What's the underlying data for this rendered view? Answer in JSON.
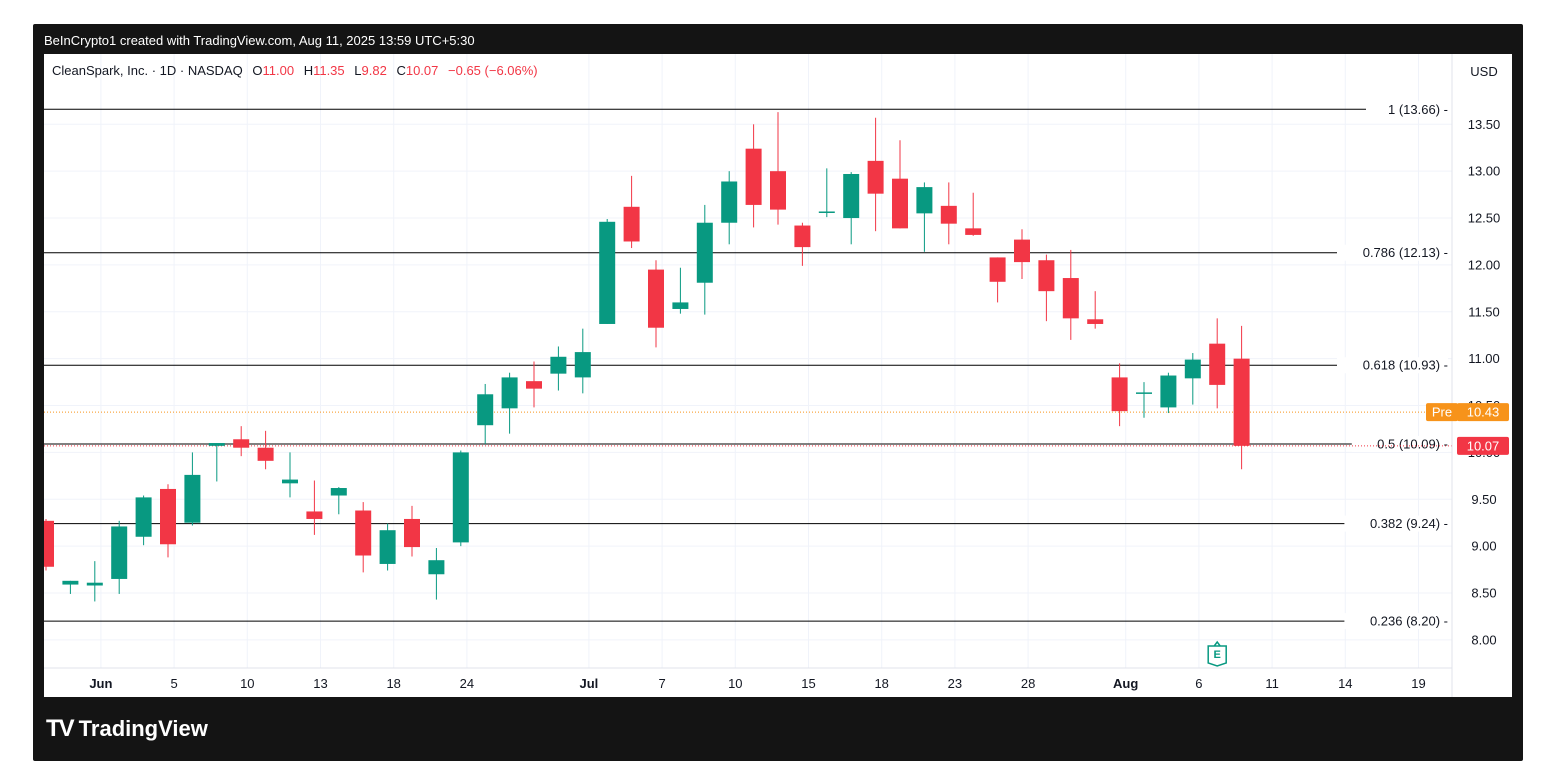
{
  "byline": "BeInCrypto1 created with TradingView.com, Aug 11, 2025 13:59 UTC+5:30",
  "brand": {
    "logo": "TV",
    "name": "TradingView"
  },
  "legend": {
    "symbol": "CleanSpark, Inc. · 1D · NASDAQ",
    "o_label": "O",
    "o_value": "11.00",
    "h_label": "H",
    "h_value": "11.35",
    "l_label": "L",
    "l_value": "9.82",
    "c_label": "C",
    "c_value": "10.07",
    "change": "−0.65 (−6.06%)"
  },
  "currency": "USD",
  "earnings_marker": "E",
  "colors": {
    "up": "#089981",
    "down": "#f23645",
    "pre": "#f7931a",
    "grid": "#f0f3fa",
    "fib": "#000000"
  },
  "chart_data": {
    "type": "candlestick",
    "ylim": [
      7.7,
      14.25
    ],
    "y_ticks": [
      "8.00",
      "8.50",
      "9.00",
      "9.50",
      "10.00",
      "10.50",
      "11.00",
      "11.50",
      "12.00",
      "12.50",
      "13.00",
      "13.50"
    ],
    "x_ticks": [
      {
        "label": "Jun",
        "i": 2.25,
        "bold": true
      },
      {
        "label": "5",
        "i": 5.25
      },
      {
        "label": "10",
        "i": 8.25
      },
      {
        "label": "13",
        "i": 11.25
      },
      {
        "label": "18",
        "i": 14.25
      },
      {
        "label": "24",
        "i": 17.25
      },
      {
        "label": "Jul",
        "i": 22.25,
        "bold": true
      },
      {
        "label": "7",
        "i": 25.25
      },
      {
        "label": "10",
        "i": 28.25
      },
      {
        "label": "15",
        "i": 31.25
      },
      {
        "label": "18",
        "i": 34.25
      },
      {
        "label": "23",
        "i": 37.25
      },
      {
        "label": "28",
        "i": 40.25
      },
      {
        "label": "Aug",
        "i": 44.25,
        "bold": true
      },
      {
        "label": "6",
        "i": 47.25
      },
      {
        "label": "11",
        "i": 50.25
      },
      {
        "label": "14",
        "i": 53.25
      },
      {
        "label": "19",
        "i": 56.25
      }
    ],
    "fib_levels": [
      {
        "label": "1 (13.66)",
        "value": 13.66
      },
      {
        "label": "0.786 (12.13)",
        "value": 12.13
      },
      {
        "label": "0.618 (10.93)",
        "value": 10.93
      },
      {
        "label": "0.5 (10.09)",
        "value": 10.09
      },
      {
        "label": "0.382 (9.24)",
        "value": 9.24
      },
      {
        "label": "0.236 (8.20)",
        "value": 8.2
      }
    ],
    "pre_market": {
      "label": "Pre",
      "value": 10.43,
      "text": "10.43"
    },
    "last_price": {
      "value": 10.07,
      "text": "10.07"
    },
    "earnings_index": 48,
    "candles": [
      [
        9.27,
        9.29,
        8.74,
        8.78
      ],
      [
        8.59,
        8.63,
        8.49,
        8.63
      ],
      [
        8.58,
        8.84,
        8.41,
        8.61
      ],
      [
        8.65,
        9.27,
        8.49,
        9.21
      ],
      [
        9.1,
        9.54,
        9.01,
        9.52
      ],
      [
        9.61,
        9.66,
        8.88,
        9.02
      ],
      [
        9.25,
        10.0,
        9.22,
        9.76
      ],
      [
        10.07,
        10.1,
        9.69,
        10.1
      ],
      [
        10.14,
        10.28,
        9.96,
        10.05
      ],
      [
        10.05,
        10.23,
        9.82,
        9.91
      ],
      [
        9.67,
        10.0,
        9.52,
        9.71
      ],
      [
        9.37,
        9.7,
        9.12,
        9.29
      ],
      [
        9.54,
        9.63,
        9.34,
        9.62
      ],
      [
        9.38,
        9.47,
        8.72,
        8.9
      ],
      [
        8.81,
        9.24,
        8.74,
        9.17
      ],
      [
        9.29,
        9.43,
        8.89,
        8.99
      ],
      [
        8.7,
        8.98,
        8.43,
        8.85
      ],
      [
        9.04,
        10.02,
        9.0,
        10.0
      ],
      [
        10.29,
        10.73,
        10.09,
        10.62
      ],
      [
        10.47,
        10.85,
        10.2,
        10.8
      ],
      [
        10.76,
        10.97,
        10.48,
        10.68
      ],
      [
        10.84,
        11.13,
        10.66,
        11.02
      ],
      [
        10.8,
        11.32,
        10.63,
        11.07
      ],
      [
        11.37,
        12.49,
        11.37,
        12.46
      ],
      [
        12.62,
        12.95,
        12.18,
        12.25
      ],
      [
        11.95,
        12.05,
        11.12,
        11.33
      ],
      [
        11.53,
        11.97,
        11.48,
        11.6
      ],
      [
        11.81,
        12.64,
        11.47,
        12.45
      ],
      [
        12.45,
        13.0,
        12.22,
        12.89
      ],
      [
        13.24,
        13.5,
        12.4,
        12.64
      ],
      [
        13.0,
        13.63,
        12.43,
        12.59
      ],
      [
        12.42,
        12.45,
        11.99,
        12.19
      ],
      [
        12.57,
        13.03,
        12.51,
        12.57
      ],
      [
        12.5,
        12.99,
        12.22,
        12.97
      ],
      [
        13.11,
        13.57,
        12.36,
        12.76
      ],
      [
        12.92,
        13.33,
        12.39,
        12.39
      ],
      [
        12.55,
        12.88,
        12.14,
        12.83
      ],
      [
        12.63,
        12.88,
        12.22,
        12.44
      ],
      [
        12.39,
        12.77,
        12.31,
        12.32
      ],
      [
        12.08,
        12.08,
        11.6,
        11.82
      ],
      [
        12.27,
        12.38,
        11.85,
        12.03
      ],
      [
        12.05,
        12.11,
        11.4,
        11.72
      ],
      [
        11.86,
        12.16,
        11.2,
        11.43
      ],
      [
        11.42,
        11.72,
        11.32,
        11.37
      ],
      [
        10.8,
        10.95,
        10.28,
        10.44
      ],
      [
        10.64,
        10.75,
        10.37,
        10.64
      ],
      [
        10.48,
        10.85,
        10.42,
        10.82
      ],
      [
        10.79,
        11.06,
        10.51,
        10.99
      ],
      [
        11.16,
        11.43,
        10.47,
        10.72
      ],
      [
        11.0,
        11.35,
        9.82,
        10.07
      ]
    ]
  }
}
